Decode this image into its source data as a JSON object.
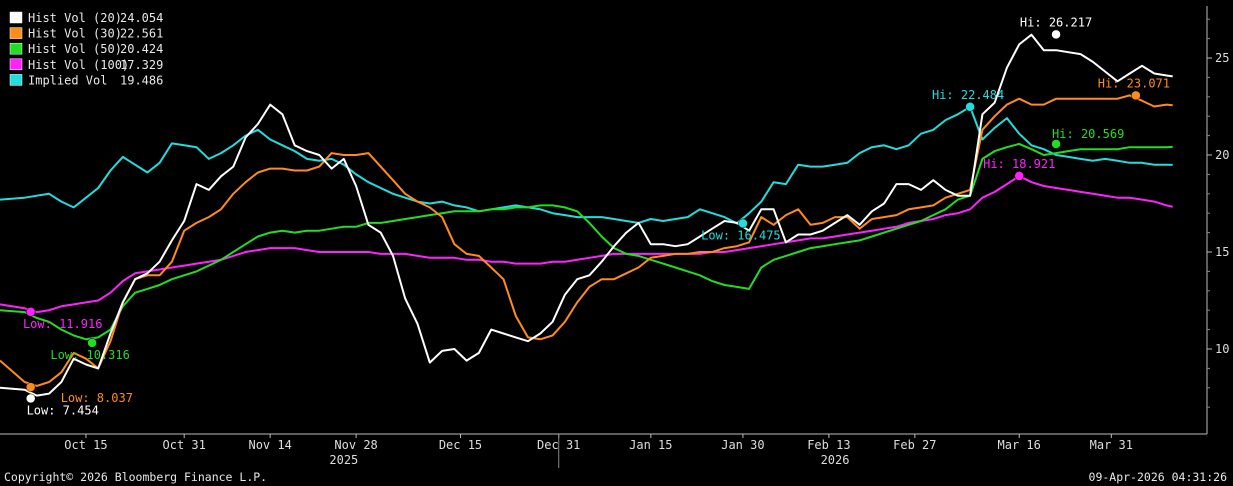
{
  "footer": {
    "copyright": "Copyright© 2026 Bloomberg Finance L.P.",
    "timestamp": "09-Apr-2026 04:31:26"
  },
  "chart_data": {
    "type": "line",
    "xlabel": "",
    "ylabel": "",
    "ylim": [
      6.5,
      27.5
    ],
    "y_ticks": [
      10,
      15,
      20,
      25
    ],
    "x_ticks": [
      "Oct 15",
      "Oct 31",
      "Nov 14",
      "Nov 28",
      "Dec 15",
      "Dec 31",
      "Jan 15",
      "Jan 30",
      "Feb 13",
      "Feb 27",
      "Mar 16",
      "Mar 31"
    ],
    "x_tick_days": [
      14,
      30,
      44,
      58,
      75,
      91,
      106,
      121,
      135,
      149,
      166,
      181
    ],
    "years": [
      {
        "label": "2025",
        "day": 56
      },
      {
        "label": "2026",
        "day": 136
      }
    ],
    "year_divider_day": 91,
    "x_range_days": [
      0,
      193
    ],
    "grid": false,
    "legend_position": "top-left",
    "series": [
      {
        "name": "Hist Vol (20)",
        "last": "24.054",
        "color": "#ffffff",
        "x": [
          0,
          4,
          6,
          8,
          10,
          12,
          14,
          16,
          18,
          20,
          22,
          24,
          26,
          28,
          30,
          32,
          34,
          36,
          38,
          40,
          42,
          44,
          46,
          48,
          50,
          52,
          54,
          56,
          58,
          60,
          62,
          64,
          66,
          68,
          70,
          72,
          74,
          76,
          78,
          80,
          82,
          84,
          86,
          88,
          90,
          92,
          94,
          96,
          98,
          100,
          102,
          104,
          106,
          108,
          110,
          112,
          114,
          116,
          118,
          120,
          122,
          124,
          126,
          128,
          130,
          132,
          134,
          136,
          138,
          140,
          142,
          144,
          146,
          148,
          150,
          152,
          154,
          156,
          158,
          160,
          162,
          164,
          166,
          168,
          170,
          172,
          174,
          176,
          178,
          180,
          182,
          184,
          186,
          188,
          190,
          191
        ],
        "y": [
          8.0,
          7.9,
          7.6,
          7.7,
          8.3,
          9.5,
          9.2,
          9.0,
          10.8,
          12.4,
          13.6,
          13.9,
          14.5,
          15.6,
          16.6,
          18.5,
          18.2,
          18.9,
          19.4,
          20.9,
          21.6,
          22.6,
          22.1,
          20.5,
          20.2,
          20.0,
          19.3,
          19.8,
          18.4,
          16.4,
          16.0,
          14.8,
          12.6,
          11.3,
          9.3,
          9.9,
          10.0,
          9.4,
          9.8,
          11.0,
          10.8,
          10.6,
          10.4,
          10.8,
          11.4,
          12.8,
          13.6,
          13.8,
          14.5,
          15.3,
          16.0,
          16.5,
          15.4,
          15.4,
          15.3,
          15.4,
          15.8,
          16.2,
          16.6,
          16.5,
          16.1,
          17.2,
          17.2,
          15.5,
          15.9,
          15.9,
          16.1,
          16.5,
          16.9,
          16.4,
          17.1,
          17.5,
          18.5,
          18.5,
          18.2,
          18.7,
          18.2,
          17.9,
          17.9,
          22.1,
          22.7,
          24.5,
          25.7,
          26.2,
          25.4,
          25.4,
          25.3,
          25.2,
          24.8,
          24.3,
          23.8,
          24.2,
          24.6,
          24.2,
          24.1,
          24.05
        ]
      },
      {
        "name": "Hist Vol (30)",
        "last": "22.561",
        "color": "#ff8c1a",
        "x": [
          0,
          4,
          6,
          8,
          10,
          12,
          14,
          16,
          18,
          20,
          22,
          24,
          26,
          28,
          30,
          32,
          34,
          36,
          38,
          40,
          42,
          44,
          46,
          48,
          50,
          52,
          54,
          56,
          58,
          60,
          62,
          64,
          66,
          68,
          70,
          72,
          74,
          76,
          78,
          80,
          82,
          84,
          86,
          88,
          90,
          92,
          94,
          96,
          98,
          100,
          102,
          104,
          106,
          108,
          110,
          112,
          114,
          116,
          118,
          120,
          122,
          124,
          126,
          128,
          130,
          132,
          134,
          136,
          138,
          140,
          142,
          144,
          146,
          148,
          150,
          152,
          154,
          156,
          158,
          160,
          162,
          164,
          166,
          168,
          170,
          172,
          174,
          176,
          178,
          180,
          182,
          184,
          186,
          188,
          190,
          191
        ],
        "y": [
          9.4,
          8.3,
          8.1,
          8.3,
          8.8,
          9.8,
          9.5,
          9.0,
          10.4,
          12.4,
          13.6,
          13.8,
          13.8,
          14.5,
          16.1,
          16.5,
          16.8,
          17.2,
          18.0,
          18.6,
          19.1,
          19.3,
          19.3,
          19.2,
          19.2,
          19.4,
          20.1,
          20.0,
          20.0,
          20.1,
          19.4,
          18.7,
          18.0,
          17.6,
          17.3,
          16.8,
          15.4,
          14.9,
          14.8,
          14.2,
          13.6,
          11.7,
          10.6,
          10.5,
          10.7,
          11.4,
          12.4,
          13.2,
          13.6,
          13.6,
          13.9,
          14.2,
          14.7,
          14.8,
          14.9,
          14.9,
          15.0,
          15.0,
          15.2,
          15.3,
          15.5,
          16.8,
          16.4,
          16.9,
          17.2,
          16.4,
          16.5,
          16.8,
          16.8,
          16.2,
          16.7,
          16.8,
          16.9,
          17.2,
          17.3,
          17.4,
          17.8,
          18.0,
          18.2,
          21.3,
          22.0,
          22.6,
          22.9,
          22.6,
          22.6,
          22.9,
          22.9,
          22.9,
          22.9,
          22.9,
          22.9,
          23.07,
          22.8,
          22.5,
          22.6,
          22.56
        ]
      },
      {
        "name": "Hist Vol (50)",
        "last": "20.424",
        "color": "#22dd22",
        "x": [
          0,
          4,
          6,
          8,
          10,
          12,
          14,
          16,
          18,
          20,
          22,
          24,
          26,
          28,
          30,
          32,
          34,
          36,
          38,
          40,
          42,
          44,
          46,
          48,
          50,
          52,
          54,
          56,
          58,
          60,
          62,
          64,
          66,
          68,
          70,
          72,
          74,
          76,
          78,
          80,
          82,
          84,
          86,
          88,
          90,
          92,
          94,
          96,
          98,
          100,
          102,
          104,
          106,
          108,
          110,
          112,
          114,
          116,
          118,
          120,
          122,
          124,
          126,
          128,
          130,
          132,
          134,
          136,
          138,
          140,
          142,
          144,
          146,
          148,
          150,
          152,
          154,
          156,
          158,
          160,
          162,
          164,
          166,
          168,
          170,
          172,
          174,
          176,
          178,
          180,
          182,
          184,
          186,
          188,
          190,
          191
        ],
        "y": [
          12.0,
          11.9,
          11.6,
          11.4,
          11.0,
          10.7,
          10.5,
          10.6,
          11.0,
          12.2,
          12.9,
          13.1,
          13.3,
          13.6,
          13.8,
          14.0,
          14.3,
          14.6,
          15.0,
          15.4,
          15.8,
          16.0,
          16.1,
          16.0,
          16.1,
          16.1,
          16.2,
          16.3,
          16.3,
          16.5,
          16.5,
          16.6,
          16.7,
          16.8,
          16.9,
          17.0,
          17.1,
          17.1,
          17.1,
          17.2,
          17.2,
          17.3,
          17.3,
          17.4,
          17.4,
          17.3,
          17.1,
          16.5,
          15.8,
          15.2,
          14.9,
          14.8,
          14.6,
          14.4,
          14.2,
          14.0,
          13.8,
          13.5,
          13.3,
          13.2,
          13.1,
          14.2,
          14.6,
          14.8,
          15.0,
          15.2,
          15.3,
          15.4,
          15.5,
          15.6,
          15.8,
          16.0,
          16.2,
          16.4,
          16.6,
          16.9,
          17.2,
          17.7,
          17.9,
          19.8,
          20.2,
          20.4,
          20.57,
          20.3,
          20.0,
          20.1,
          20.2,
          20.3,
          20.3,
          20.3,
          20.3,
          20.4,
          20.4,
          20.4,
          20.4,
          20.42
        ]
      },
      {
        "name": "Hist Vol (100)",
        "last": "17.329",
        "color": "#ff22ff",
        "x": [
          0,
          4,
          6,
          8,
          10,
          12,
          14,
          16,
          18,
          20,
          22,
          24,
          26,
          28,
          30,
          32,
          34,
          36,
          38,
          40,
          42,
          44,
          46,
          48,
          50,
          52,
          54,
          56,
          58,
          60,
          62,
          64,
          66,
          68,
          70,
          72,
          74,
          76,
          78,
          80,
          82,
          84,
          86,
          88,
          90,
          92,
          94,
          96,
          98,
          100,
          102,
          104,
          106,
          108,
          110,
          112,
          114,
          116,
          118,
          120,
          122,
          124,
          126,
          128,
          130,
          132,
          134,
          136,
          138,
          140,
          142,
          144,
          146,
          148,
          150,
          152,
          154,
          156,
          158,
          160,
          162,
          164,
          166,
          168,
          170,
          172,
          174,
          176,
          178,
          180,
          182,
          184,
          186,
          188,
          190,
          191
        ],
        "y": [
          12.3,
          12.1,
          11.9,
          12.0,
          12.2,
          12.3,
          12.4,
          12.5,
          12.9,
          13.5,
          13.9,
          14.0,
          14.1,
          14.2,
          14.3,
          14.4,
          14.5,
          14.6,
          14.8,
          15.0,
          15.1,
          15.2,
          15.2,
          15.2,
          15.1,
          15.0,
          15.0,
          15.0,
          15.0,
          15.0,
          14.9,
          14.9,
          14.9,
          14.8,
          14.7,
          14.7,
          14.7,
          14.6,
          14.6,
          14.5,
          14.5,
          14.4,
          14.4,
          14.4,
          14.5,
          14.5,
          14.6,
          14.7,
          14.8,
          14.9,
          14.9,
          14.9,
          14.9,
          14.9,
          14.9,
          14.9,
          14.9,
          15.0,
          15.0,
          15.1,
          15.2,
          15.3,
          15.4,
          15.5,
          15.6,
          15.7,
          15.7,
          15.8,
          15.9,
          16.0,
          16.1,
          16.2,
          16.3,
          16.5,
          16.6,
          16.7,
          16.9,
          17.0,
          17.2,
          17.8,
          18.1,
          18.5,
          18.92,
          18.6,
          18.4,
          18.3,
          18.2,
          18.1,
          18.0,
          17.9,
          17.8,
          17.8,
          17.7,
          17.6,
          17.4,
          17.33
        ]
      },
      {
        "name": "Implied Vol",
        "last": "19.486",
        "color": "#22dddd",
        "x": [
          0,
          4,
          6,
          8,
          10,
          12,
          14,
          16,
          18,
          20,
          22,
          24,
          26,
          28,
          30,
          32,
          34,
          36,
          38,
          40,
          42,
          44,
          46,
          48,
          50,
          52,
          54,
          56,
          58,
          60,
          62,
          64,
          66,
          68,
          70,
          72,
          74,
          76,
          78,
          80,
          82,
          84,
          86,
          88,
          90,
          92,
          94,
          96,
          98,
          100,
          102,
          104,
          106,
          108,
          110,
          112,
          114,
          116,
          118,
          120,
          122,
          124,
          126,
          128,
          130,
          132,
          134,
          136,
          138,
          140,
          142,
          144,
          146,
          148,
          150,
          152,
          154,
          156,
          158,
          160,
          162,
          164,
          166,
          168,
          170,
          172,
          174,
          176,
          178,
          180,
          182,
          184,
          186,
          188,
          190,
          191
        ],
        "y": [
          17.7,
          17.8,
          17.9,
          18.0,
          17.6,
          17.3,
          17.8,
          18.3,
          19.2,
          19.9,
          19.5,
          19.1,
          19.6,
          20.6,
          20.5,
          20.4,
          19.8,
          20.1,
          20.5,
          21.0,
          21.3,
          20.8,
          20.5,
          20.2,
          19.8,
          19.7,
          19.8,
          19.5,
          19.0,
          18.6,
          18.3,
          18.0,
          17.8,
          17.6,
          17.5,
          17.6,
          17.4,
          17.3,
          17.1,
          17.2,
          17.3,
          17.4,
          17.3,
          17.2,
          17.0,
          16.9,
          16.8,
          16.8,
          16.8,
          16.7,
          16.6,
          16.5,
          16.7,
          16.6,
          16.7,
          16.8,
          17.2,
          17.0,
          16.8,
          16.48,
          17.0,
          17.6,
          18.6,
          18.5,
          19.5,
          19.4,
          19.4,
          19.5,
          19.6,
          20.1,
          20.4,
          20.5,
          20.3,
          20.5,
          21.1,
          21.3,
          21.8,
          22.1,
          22.48,
          20.8,
          21.4,
          21.9,
          21.1,
          20.5,
          20.3,
          20.0,
          19.9,
          19.8,
          19.7,
          19.8,
          19.7,
          19.6,
          19.6,
          19.5,
          19.5,
          19.49
        ]
      }
    ],
    "annotations": [
      {
        "text": "Hi: 26.217",
        "series": "Hist Vol (20)",
        "day": 172,
        "value": 26.217,
        "color": "#ffffff",
        "anchor": "above"
      },
      {
        "text": "Hi: 23.071",
        "series": "Hist Vol (30)",
        "day": 185,
        "value": 23.071,
        "color": "#ff8c1a",
        "anchor": "above-left"
      },
      {
        "text": "Hi: 22.484",
        "series": "Implied Vol",
        "day": 158,
        "value": 22.484,
        "color": "#22dddd",
        "anchor": "above-left"
      },
      {
        "text": "Hi: 20.569",
        "series": "Hist Vol (50)",
        "day": 172,
        "value": 20.569,
        "color": "#22dd22",
        "anchor": "right"
      },
      {
        "text": "Hi: 18.921",
        "series": "Hist Vol (100)",
        "day": 166,
        "value": 18.921,
        "color": "#ff22ff",
        "anchor": "above"
      },
      {
        "text": "Low: 16.475",
        "series": "Implied Vol",
        "day": 121,
        "value": 16.475,
        "color": "#22dddd",
        "anchor": "below-left"
      },
      {
        "text": "Low: 11.916",
        "series": "Hist Vol (100)",
        "day": 5,
        "value": 11.916,
        "color": "#ff22ff",
        "anchor": "below"
      },
      {
        "text": "Low: 10.316",
        "series": "Hist Vol (50)",
        "day": 15,
        "value": 10.316,
        "color": "#22dd22",
        "anchor": "below-left"
      },
      {
        "text": "Low: 8.037",
        "series": "Hist Vol (30)",
        "day": 5,
        "value": 8.037,
        "color": "#ff8c1a",
        "anchor": "below-right"
      },
      {
        "text": "Low: 7.454",
        "series": "Hist Vol (20)",
        "day": 5,
        "value": 7.454,
        "color": "#ffffff",
        "anchor": "below"
      }
    ]
  }
}
